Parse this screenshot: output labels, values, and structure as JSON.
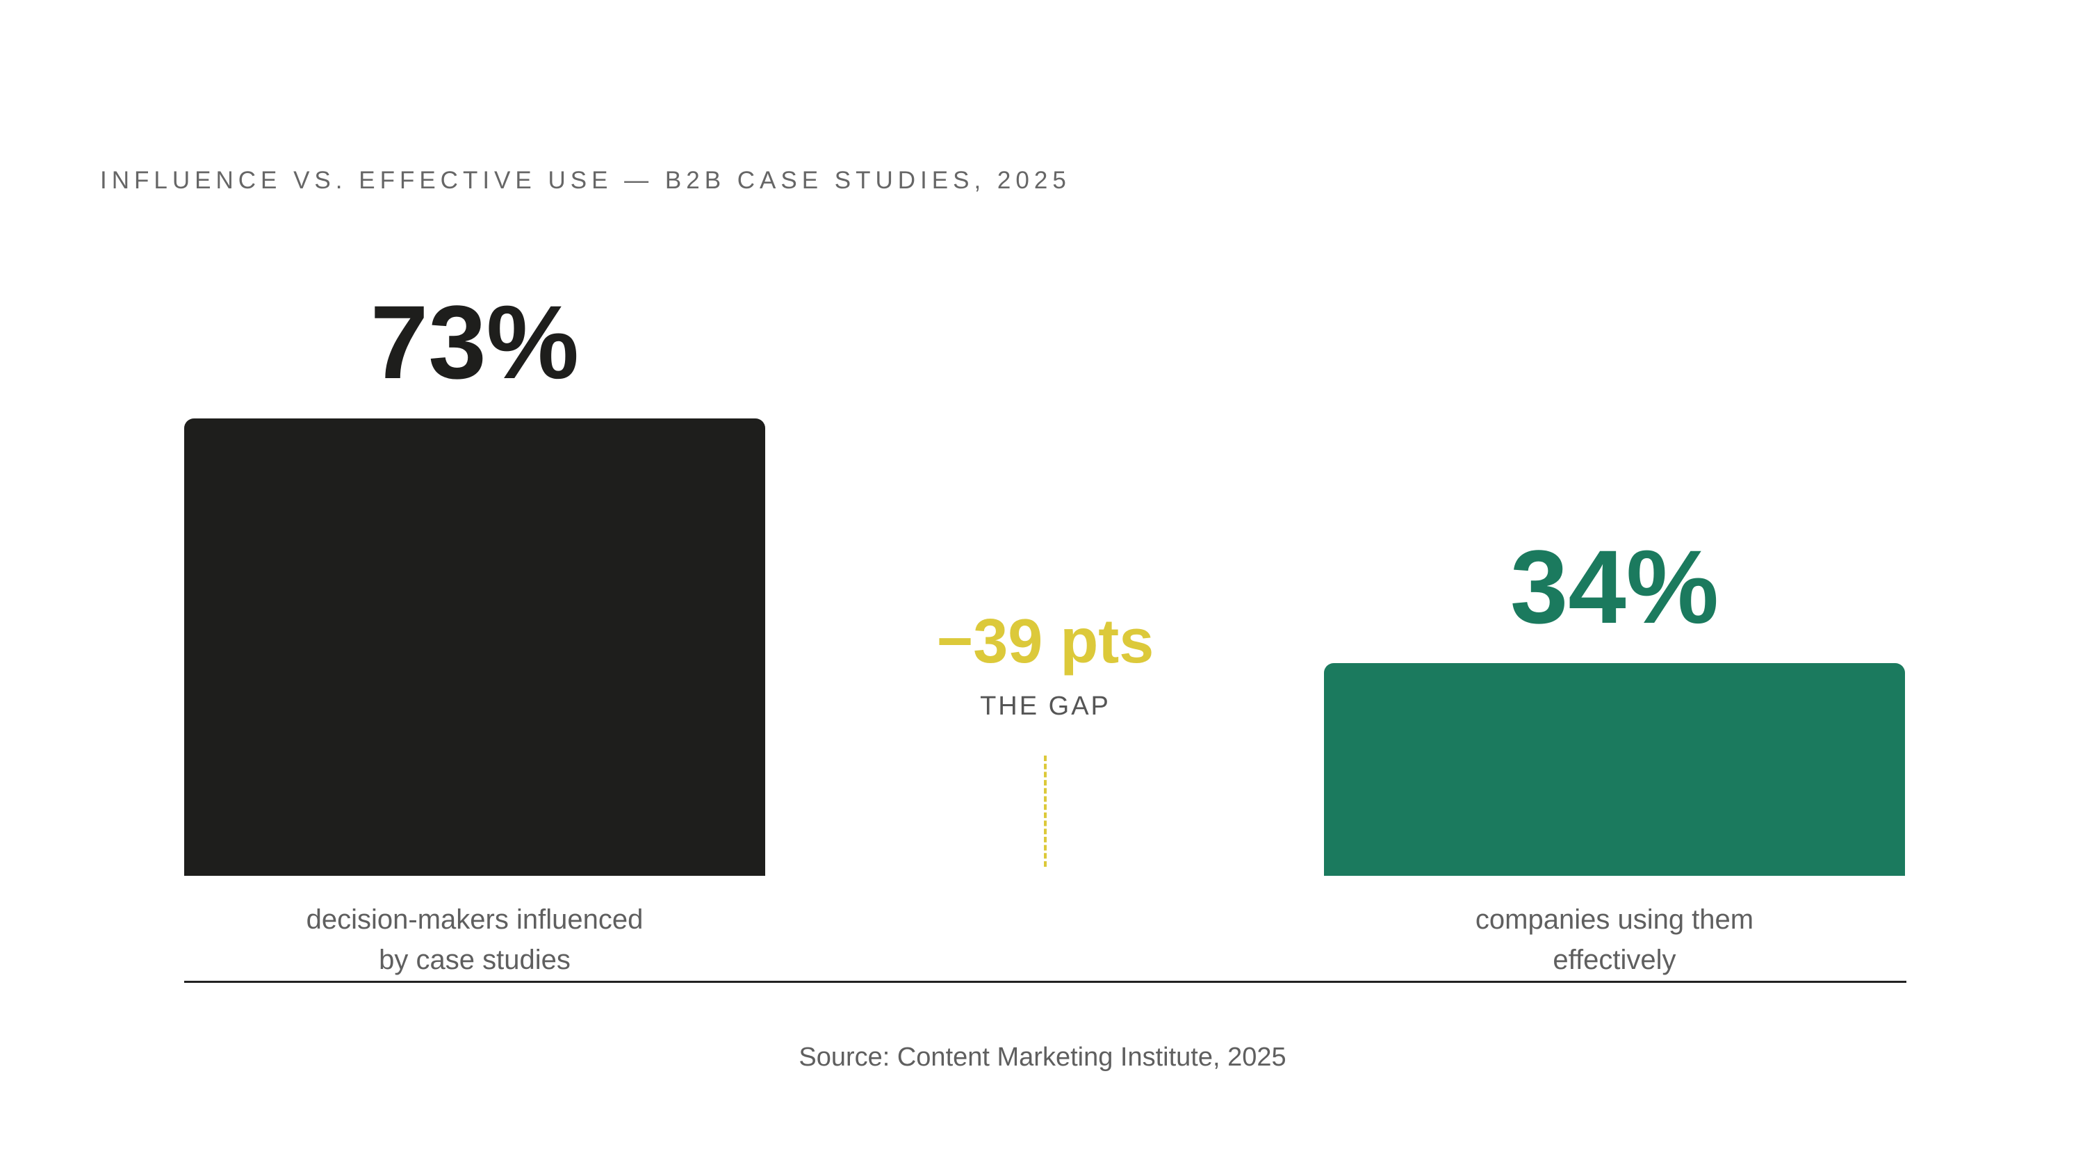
{
  "chart_data": {
    "type": "bar",
    "title": "INFLUENCE VS. EFFECTIVE USE — B2B CASE STUDIES, 2025",
    "categories": [
      "decision-makers influenced\nby case studies",
      "companies using them\neffectively"
    ],
    "values": [
      73,
      34
    ],
    "value_labels": [
      "73%",
      "34%"
    ],
    "colors": [
      "#1e1e1c",
      "#1b7a5e"
    ],
    "annotation": {
      "text": "−39 pts",
      "label": "THE GAP",
      "color": "#dcc93a"
    },
    "source": "Source: Content Marketing Institute, 2025"
  }
}
